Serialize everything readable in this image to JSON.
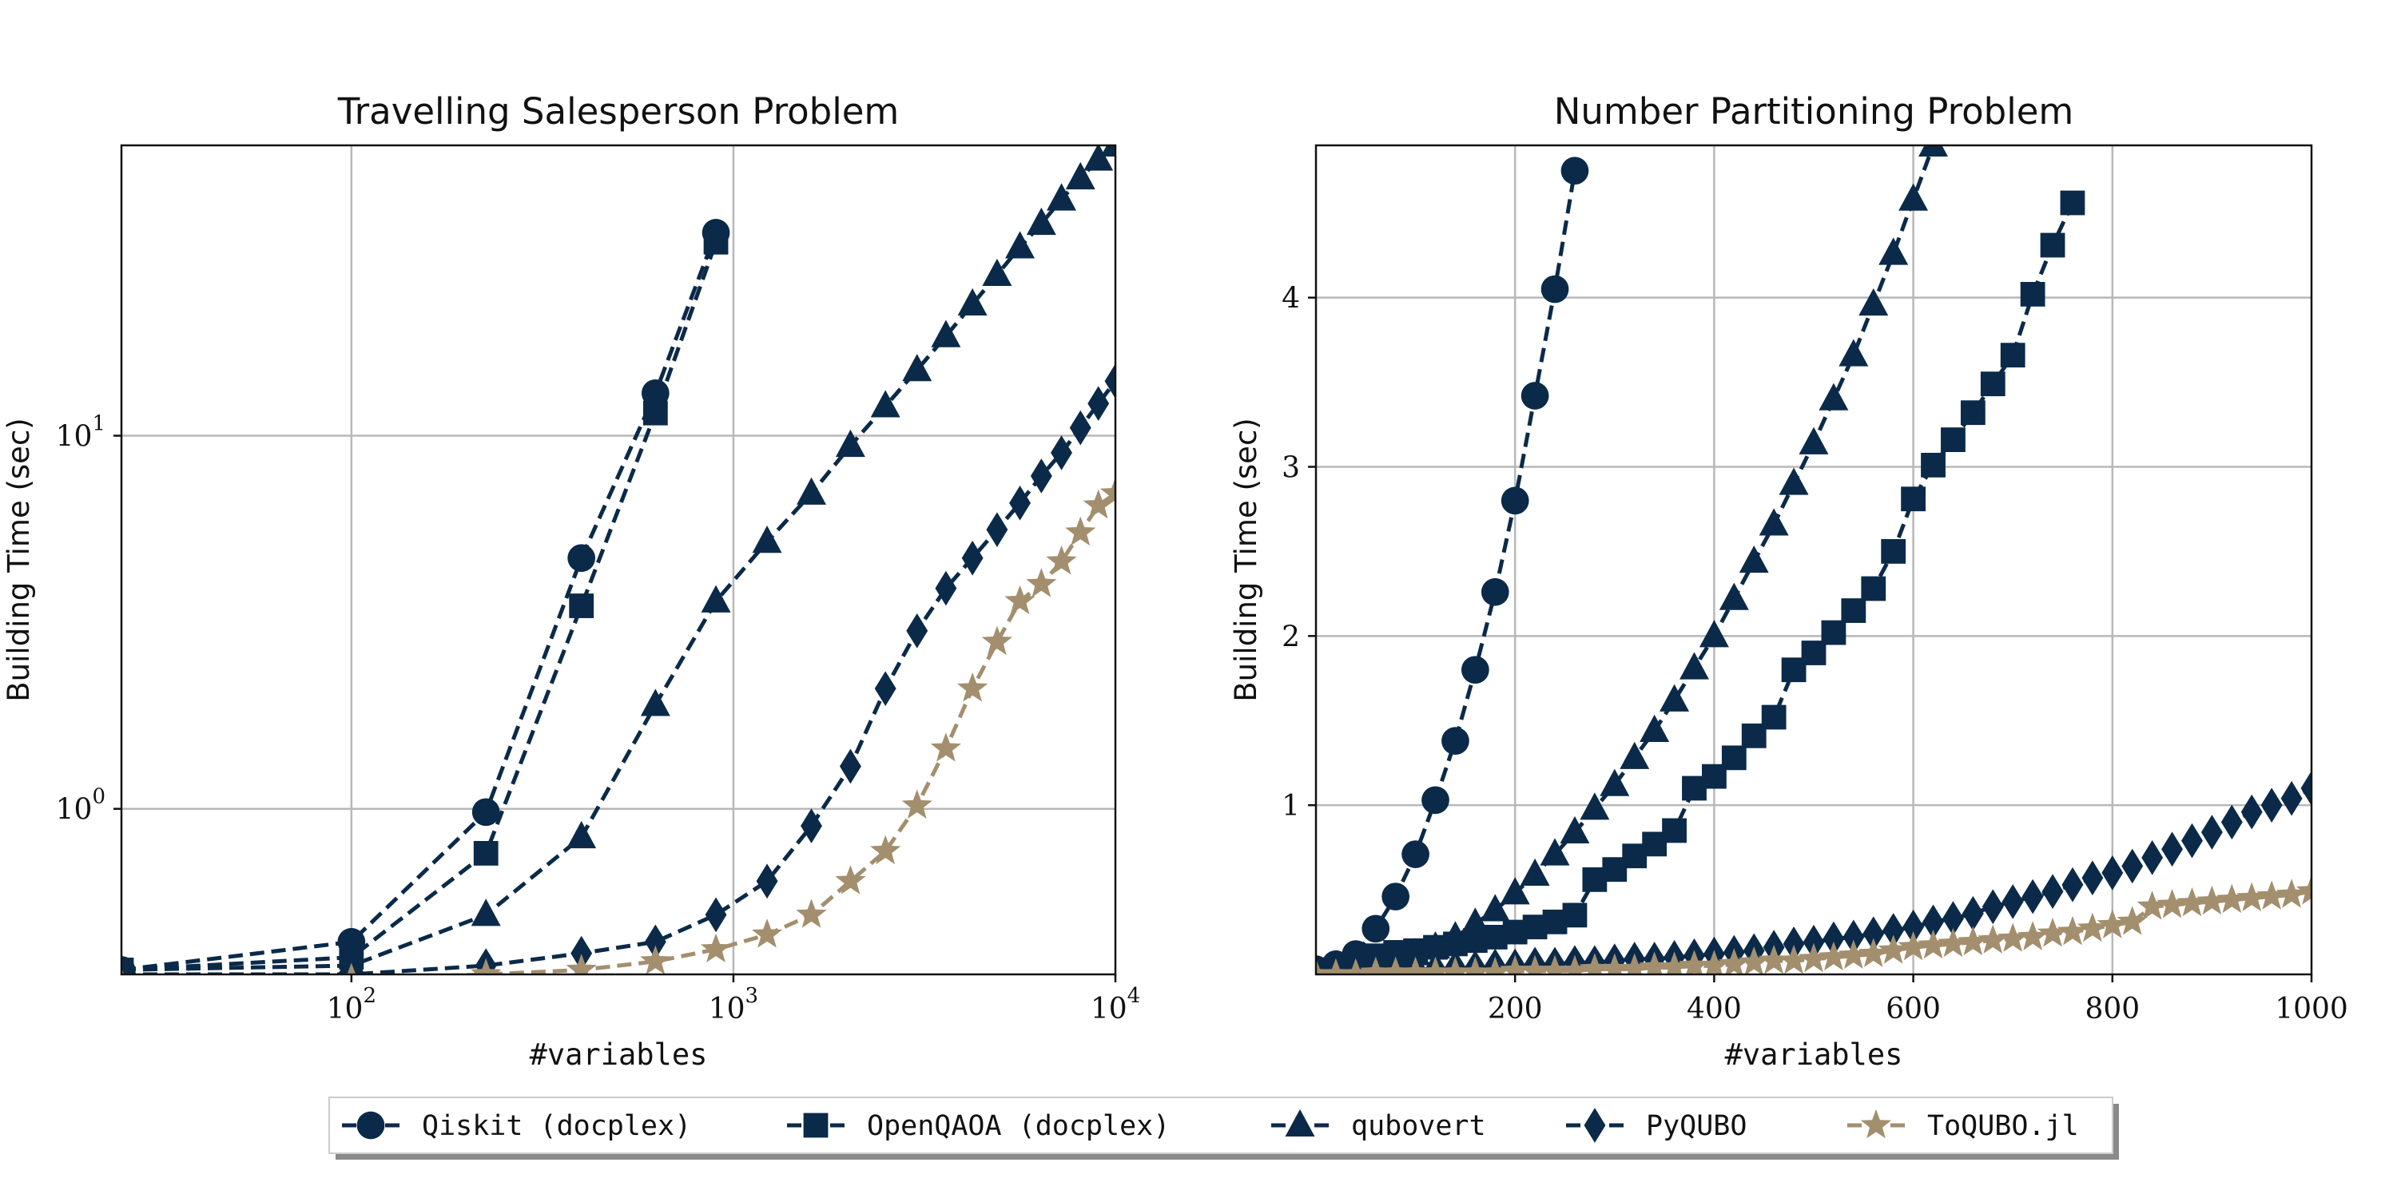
{
  "colors": {
    "navy": "#0b2a49",
    "tan": "#a38f6e",
    "grid": "#b8b8b8",
    "frame": "#111111"
  },
  "legend": {
    "placement": "bottom-center",
    "entries": [
      {
        "name": "Qiskit (docplex)",
        "marker": "circle",
        "color": "#0b2a49"
      },
      {
        "name": "OpenQAOA (docplex)",
        "marker": "square",
        "color": "#0b2a49"
      },
      {
        "name": "qubovert",
        "marker": "triangle",
        "color": "#0b2a49"
      },
      {
        "name": "PyQUBO",
        "marker": "diamond",
        "color": "#0b2a49"
      },
      {
        "name": "ToQUBO.jl",
        "marker": "star",
        "color": "#a38f6e"
      }
    ]
  },
  "chart_data": [
    {
      "type": "line",
      "title": "Travelling Salesperson Problem",
      "xlabel": "#variables",
      "ylabel": "Building Time (sec)",
      "xscale": "log",
      "yscale": "log",
      "xlim": [
        25,
        10000
      ],
      "ylim": [
        0.36,
        60
      ],
      "grid": true,
      "xticks": [
        {
          "value": 100,
          "base": "10",
          "exp": "2"
        },
        {
          "value": 1000,
          "base": "10",
          "exp": "3"
        },
        {
          "value": 10000,
          "base": "10",
          "exp": "4"
        }
      ],
      "yticks": [
        {
          "value": 1,
          "base": "10",
          "exp": "0"
        },
        {
          "value": 10,
          "base": "10",
          "exp": "1"
        }
      ],
      "series": [
        {
          "name": "Qiskit (docplex)",
          "marker": "circle",
          "color": "#0b2a49",
          "x": [
            25,
            100,
            225,
            400,
            625,
            900
          ],
          "y": [
            0.37,
            0.44,
            0.98,
            4.7,
            13,
            35
          ]
        },
        {
          "name": "OpenQAOA (docplex)",
          "marker": "square",
          "color": "#0b2a49",
          "x": [
            25,
            100,
            225,
            400,
            625,
            900
          ],
          "y": [
            0.37,
            0.4,
            0.76,
            3.5,
            11.5,
            33
          ]
        },
        {
          "name": "qubovert",
          "marker": "triangle",
          "color": "#0b2a49",
          "x": [
            25,
            100,
            225,
            400,
            625,
            900,
            1225,
            1600,
            2025,
            2500,
            3025,
            3600,
            4225,
            4900,
            5625,
            6400,
            7225,
            8100,
            9025,
            10000
          ],
          "y": [
            0.37,
            0.38,
            0.52,
            0.84,
            1.9,
            3.6,
            5.2,
            7.0,
            9.4,
            12,
            15,
            18.5,
            22.5,
            27,
            32,
            37,
            43,
            49,
            55,
            60
          ]
        },
        {
          "name": "PyQUBO",
          "marker": "diamond",
          "color": "#0b2a49",
          "x": [
            25,
            100,
            225,
            400,
            625,
            900,
            1225,
            1600,
            2025,
            2500,
            3025,
            3600,
            4225,
            4900,
            5625,
            6400,
            7225,
            8100,
            9025,
            10000
          ],
          "y": [
            0.36,
            0.36,
            0.38,
            0.41,
            0.44,
            0.52,
            0.64,
            0.9,
            1.3,
            2.1,
            3.0,
            3.9,
            4.7,
            5.6,
            6.6,
            7.8,
            9.0,
            10.5,
            12.2,
            14
          ]
        },
        {
          "name": "ToQUBO.jl",
          "marker": "star",
          "color": "#a38f6e",
          "x": [
            25,
            100,
            225,
            400,
            625,
            900,
            1225,
            1600,
            2025,
            2500,
            3025,
            3600,
            4225,
            4900,
            5625,
            6400,
            7225,
            8100,
            9025,
            10000
          ],
          "y": [
            0.34,
            0.35,
            0.36,
            0.37,
            0.39,
            0.42,
            0.46,
            0.52,
            0.64,
            0.77,
            1.02,
            1.45,
            2.1,
            2.8,
            3.6,
            4.0,
            4.6,
            5.5,
            6.5,
            7.0
          ]
        }
      ]
    },
    {
      "type": "line",
      "title": "Number Partitioning Problem",
      "xlabel": "#variables",
      "ylabel": "Building Time (sec)",
      "xscale": "linear",
      "yscale": "linear",
      "xlim": [
        0,
        1000
      ],
      "ylim": [
        0,
        4.9
      ],
      "grid": true,
      "xticks": [
        {
          "value": 200,
          "label": "200"
        },
        {
          "value": 400,
          "label": "400"
        },
        {
          "value": 600,
          "label": "600"
        },
        {
          "value": 800,
          "label": "800"
        },
        {
          "value": 1000,
          "label": "1000"
        }
      ],
      "yticks": [
        {
          "value": 1,
          "label": "1"
        },
        {
          "value": 2,
          "label": "2"
        },
        {
          "value": 3,
          "label": "3"
        },
        {
          "value": 4,
          "label": "4"
        }
      ],
      "series": [
        {
          "name": "Qiskit (docplex)",
          "marker": "circle",
          "color": "#0b2a49",
          "x": [
            0,
            20,
            40,
            60,
            80,
            100,
            120,
            140,
            160,
            180,
            200,
            220,
            240,
            260
          ],
          "y": [
            0.03,
            0.06,
            0.12,
            0.27,
            0.46,
            0.71,
            1.03,
            1.38,
            1.8,
            2.26,
            2.8,
            3.42,
            4.05,
            4.75
          ]
        },
        {
          "name": "OpenQAOA (docplex)",
          "marker": "square",
          "color": "#0b2a49",
          "x": [
            0,
            20,
            40,
            60,
            80,
            100,
            120,
            140,
            160,
            180,
            200,
            220,
            240,
            260,
            280,
            300,
            320,
            340,
            360,
            380,
            400,
            420,
            440,
            460,
            480,
            500,
            520,
            540,
            560,
            580,
            600,
            620,
            640,
            660,
            680,
            700,
            720,
            740,
            760
          ],
          "y": [
            0.02,
            0.03,
            0.07,
            0.11,
            0.13,
            0.14,
            0.16,
            0.18,
            0.2,
            0.22,
            0.25,
            0.28,
            0.31,
            0.35,
            0.56,
            0.62,
            0.7,
            0.77,
            0.85,
            1.1,
            1.17,
            1.28,
            1.41,
            1.52,
            1.8,
            1.9,
            2.02,
            2.15,
            2.28,
            2.5,
            2.81,
            3.01,
            3.16,
            3.32,
            3.49,
            3.66,
            4.02,
            4.31,
            4.56
          ]
        },
        {
          "name": "qubovert",
          "marker": "triangle",
          "color": "#0b2a49",
          "x": [
            0,
            20,
            40,
            60,
            80,
            100,
            120,
            140,
            160,
            180,
            200,
            220,
            240,
            260,
            280,
            300,
            320,
            340,
            360,
            380,
            400,
            420,
            440,
            460,
            480,
            500,
            520,
            540,
            560,
            580,
            600,
            620
          ],
          "y": [
            0.02,
            0.03,
            0.05,
            0.07,
            0.1,
            0.12,
            0.16,
            0.22,
            0.3,
            0.38,
            0.48,
            0.59,
            0.71,
            0.84,
            0.98,
            1.12,
            1.28,
            1.44,
            1.62,
            1.81,
            2.0,
            2.22,
            2.44,
            2.66,
            2.9,
            3.14,
            3.4,
            3.66,
            3.96,
            4.26,
            4.58,
            4.9
          ]
        },
        {
          "name": "PyQUBO",
          "marker": "diamond",
          "color": "#0b2a49",
          "x": [
            0,
            20,
            40,
            60,
            80,
            100,
            120,
            140,
            160,
            180,
            200,
            220,
            240,
            260,
            280,
            300,
            320,
            340,
            360,
            380,
            400,
            420,
            440,
            460,
            480,
            500,
            520,
            540,
            560,
            580,
            600,
            620,
            640,
            660,
            680,
            700,
            720,
            740,
            760,
            780,
            800,
            820,
            840,
            860,
            880,
            900,
            920,
            940,
            960,
            980,
            1000
          ],
          "y": [
            0.01,
            0.01,
            0.02,
            0.02,
            0.03,
            0.03,
            0.03,
            0.04,
            0.04,
            0.05,
            0.05,
            0.06,
            0.06,
            0.07,
            0.07,
            0.08,
            0.09,
            0.09,
            0.1,
            0.11,
            0.12,
            0.13,
            0.14,
            0.16,
            0.18,
            0.19,
            0.21,
            0.22,
            0.24,
            0.26,
            0.28,
            0.31,
            0.33,
            0.36,
            0.4,
            0.43,
            0.46,
            0.49,
            0.53,
            0.57,
            0.6,
            0.64,
            0.69,
            0.74,
            0.79,
            0.84,
            0.9,
            0.96,
            1.0,
            1.04,
            1.1
          ]
        },
        {
          "name": "ToQUBO.jl",
          "marker": "star",
          "color": "#a38f6e",
          "x": [
            0,
            20,
            40,
            60,
            80,
            100,
            120,
            140,
            160,
            180,
            200,
            220,
            240,
            260,
            280,
            300,
            320,
            340,
            360,
            380,
            400,
            420,
            440,
            460,
            480,
            500,
            520,
            540,
            560,
            580,
            600,
            620,
            640,
            660,
            680,
            700,
            720,
            740,
            760,
            780,
            800,
            820,
            840,
            860,
            880,
            900,
            920,
            940,
            960,
            980,
            1000
          ],
          "y": [
            0.0,
            0.0,
            0.0,
            0.01,
            0.01,
            0.01,
            0.01,
            0.01,
            0.01,
            0.01,
            0.02,
            0.02,
            0.02,
            0.02,
            0.03,
            0.03,
            0.03,
            0.04,
            0.04,
            0.05,
            0.05,
            0.06,
            0.07,
            0.08,
            0.08,
            0.09,
            0.1,
            0.11,
            0.12,
            0.14,
            0.16,
            0.17,
            0.18,
            0.19,
            0.2,
            0.21,
            0.22,
            0.24,
            0.25,
            0.27,
            0.29,
            0.31,
            0.4,
            0.41,
            0.42,
            0.43,
            0.44,
            0.45,
            0.46,
            0.47,
            0.49
          ]
        }
      ]
    }
  ]
}
